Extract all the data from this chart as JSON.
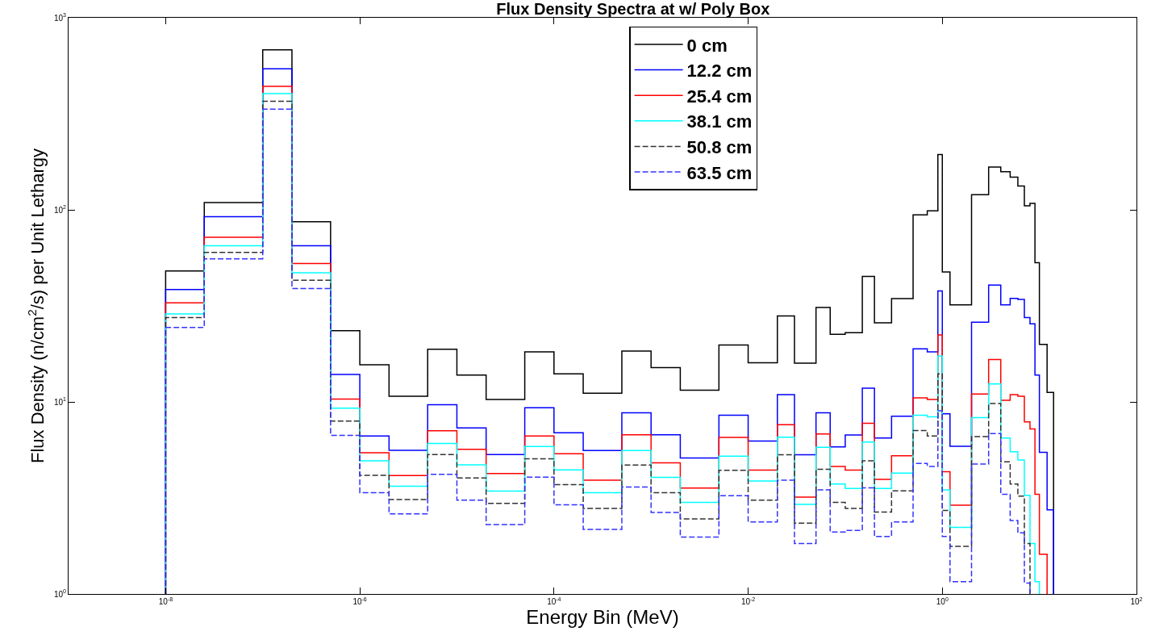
{
  "chart_data": {
    "type": "histogram",
    "title": "Flux Density Spectra at w/ Poly Box",
    "xlabel": "Energy Bin (MeV)",
    "ylabel": "Flux Density (n/cm$^{2}$/s) per Unit Lethargy",
    "log": "xy",
    "bins": [
      1e-08,
      2.5e-08,
      1e-07,
      2e-07,
      5e-07,
      1e-06,
      2e-06,
      5e-06,
      1e-05,
      2e-05,
      5e-05,
      0.0001,
      0.0002,
      0.0005,
      0.001,
      0.002,
      0.005,
      0.01,
      0.02,
      0.03,
      0.05,
      0.07,
      0.1,
      0.15,
      0.2,
      0.3,
      0.5,
      0.7,
      0.9,
      1.0,
      1.2,
      2,
      3,
      4,
      5,
      6,
      7,
      8,
      9,
      10,
      12,
      14
    ],
    "xlim": [
      1e-09,
      100
    ],
    "xticks": [
      {
        "value": 1e-08,
        "label": "10$^{-8}$"
      },
      {
        "value": 1e-06,
        "label": "10$^{-6}$"
      },
      {
        "value": 0.0001,
        "label": "10$^{-4}$"
      },
      {
        "value": 0.01,
        "label": "10$^{-2}$"
      },
      {
        "value": 1,
        "label": "10$^{0}$"
      },
      {
        "value": 100,
        "label": "10$^{2}$"
      }
    ],
    "ylim": [
      1,
      1000
    ],
    "yticks": [
      {
        "value": 1,
        "label": "10$^{0}$"
      },
      {
        "value": 10,
        "label": "10$^{1}$"
      },
      {
        "value": 100,
        "label": "10$^{2}$"
      },
      {
        "value": 1000,
        "label": "10$^{3}$"
      }
    ],
    "legend": "top",
    "series": [
      {
        "name": "0 cm",
        "color": "#000000",
        "line_style": "solid",
        "values": [
          48,
          109,
          681,
          86.7,
          23.5,
          15.6,
          10.7,
          18.8,
          13.8,
          10.3,
          18.2,
          14.0,
          11.1,
          18.4,
          15.1,
          11.5,
          19.8,
          16.0,
          28.0,
          15.9,
          31.0,
          22.5,
          22.9,
          45.0,
          25.8,
          34.5,
          94.2,
          98.8,
          194,
          47.5,
          32.0,
          120,
          167,
          158,
          148,
          133,
          105,
          108,
          53.1,
          19.9,
          11.2
        ]
      },
      {
        "name": "12.2 cm",
        "color": "#0000ff",
        "line_style": "solid",
        "values": [
          38.5,
          92,
          542,
          65,
          13.9,
          6.65,
          5.6,
          9.66,
          7.32,
          5.32,
          9.33,
          6.91,
          5.58,
          8.77,
          6.74,
          5.11,
          8.53,
          6.25,
          10.9,
          5.3,
          8.78,
          5.83,
          6.72,
          11.8,
          6.48,
          8.43,
          18.9,
          18.2,
          37.8,
          8.68,
          5.87,
          26.0,
          40.6,
          32.0,
          34.6,
          34.2,
          27.5,
          25.5,
          13.8,
          5.46,
          2.74
        ]
      },
      {
        "name": "25.4 cm",
        "color": "#ff0000",
        "line_style": "solid",
        "bins": [
          1e-08,
          2.5e-08,
          1e-07,
          2e-07,
          5e-07,
          1e-06,
          2e-06,
          5e-06,
          1e-05,
          2e-05,
          5e-05,
          0.0001,
          0.0002,
          0.0005,
          0.001,
          0.002,
          0.005,
          0.01,
          0.02,
          0.03,
          0.05,
          0.07,
          0.1,
          0.15,
          0.2,
          0.3,
          0.5,
          0.7,
          0.9,
          1.0,
          1.2,
          2,
          3,
          4,
          5,
          6,
          7,
          8,
          9,
          10,
          12
        ],
        "values": [
          32.8,
          72,
          439,
          52.5,
          10.35,
          5.44,
          4.14,
          7.07,
          5.67,
          4.24,
          6.65,
          5.37,
          3.91,
          6.74,
          4.82,
          3.56,
          6.53,
          4.41,
          7.61,
          3.19,
          6.8,
          4.61,
          4.41,
          7.73,
          3.95,
          5.24,
          10.5,
          10.3,
          22.3,
          4.33,
          2.9,
          11.0,
          16.6,
          10.2,
          10.9,
          10.7,
          7.87,
          7.23,
          3.3,
          1.61
        ]
      },
      {
        "name": "38.1 cm",
        "color": "#00ffff",
        "line_style": "solid",
        "bins": [
          1e-08,
          2.5e-08,
          1e-07,
          2e-07,
          5e-07,
          1e-06,
          2e-06,
          5e-06,
          1e-05,
          2e-05,
          5e-05,
          0.0001,
          0.0002,
          0.0005,
          0.001,
          0.002,
          0.005,
          0.01,
          0.02,
          0.03,
          0.05,
          0.07,
          0.1,
          0.15,
          0.2,
          0.3,
          0.5,
          0.7,
          0.9,
          1.0,
          1.2,
          2,
          3,
          4,
          5,
          6,
          7,
          8,
          9,
          10
        ],
        "values": [
          28.7,
          65,
          403,
          47,
          9.27,
          4.94,
          3.64,
          6.08,
          4.7,
          3.43,
          5.86,
          4.43,
          3.37,
          5.58,
          4.05,
          3.0,
          5.22,
          3.87,
          6.55,
          2.93,
          5.81,
          3.74,
          3.54,
          6.18,
          3.54,
          4.26,
          8.53,
          8.37,
          17.3,
          3.48,
          2.22,
          8.28,
          12.4,
          6.48,
          5.5,
          4.98,
          3.26,
          1.83,
          1.16
        ]
      },
      {
        "name": "50.8 cm",
        "color": "#333333",
        "line_style": "dashed",
        "bins": [
          1e-08,
          2.5e-08,
          1e-07,
          2e-07,
          5e-07,
          1e-06,
          2e-06,
          5e-06,
          1e-05,
          2e-05,
          5e-05,
          0.0001,
          0.0002,
          0.0005,
          0.001,
          0.002,
          0.005,
          0.01,
          0.02,
          0.03,
          0.05,
          0.07,
          0.1,
          0.15,
          0.2,
          0.3,
          0.5,
          0.7,
          0.9,
          1.0,
          1.2,
          2,
          3,
          4,
          5,
          6,
          7,
          8
        ],
        "values": [
          27.5,
          60,
          367,
          43,
          7.94,
          4.15,
          3.1,
          5.32,
          4.02,
          2.96,
          5.06,
          3.71,
          2.79,
          4.69,
          3.37,
          2.46,
          4.4,
          3.08,
          5.3,
          2.34,
          4.46,
          3.0,
          2.79,
          4.93,
          2.67,
          3.44,
          7.1,
          6.65,
          14.0,
          2.72,
          1.77,
          6.6,
          9.8,
          4.87,
          3.74,
          3.23,
          1.83
        ]
      },
      {
        "name": "63.5 cm",
        "color": "#3333ff",
        "line_style": "dashed",
        "bins": [
          1e-08,
          2.5e-08,
          1e-07,
          2e-07,
          5e-07,
          1e-06,
          2e-06,
          5e-06,
          1e-05,
          2e-05,
          5e-05,
          0.0001,
          0.0002,
          0.0005,
          0.001,
          0.002,
          0.005,
          0.01,
          0.02,
          0.03,
          0.05,
          0.07,
          0.1,
          0.15,
          0.2,
          0.3,
          0.5,
          0.7,
          0.9,
          1.0,
          1.2,
          2,
          3,
          4,
          5,
          6,
          7,
          8
        ],
        "values": [
          24.4,
          55.6,
          334,
          38.9,
          6.7,
          3.37,
          2.61,
          4.2,
          3.08,
          2.3,
          4.06,
          2.91,
          2.17,
          3.6,
          2.66,
          1.98,
          3.25,
          2.37,
          3.91,
          1.83,
          3.48,
          2.1,
          2.14,
          3.57,
          1.99,
          2.37,
          4.78,
          4.61,
          9.0,
          1.99,
          1.16,
          4.75,
          6.84,
          3.3,
          2.41,
          2.08,
          1.14
        ]
      }
    ]
  }
}
